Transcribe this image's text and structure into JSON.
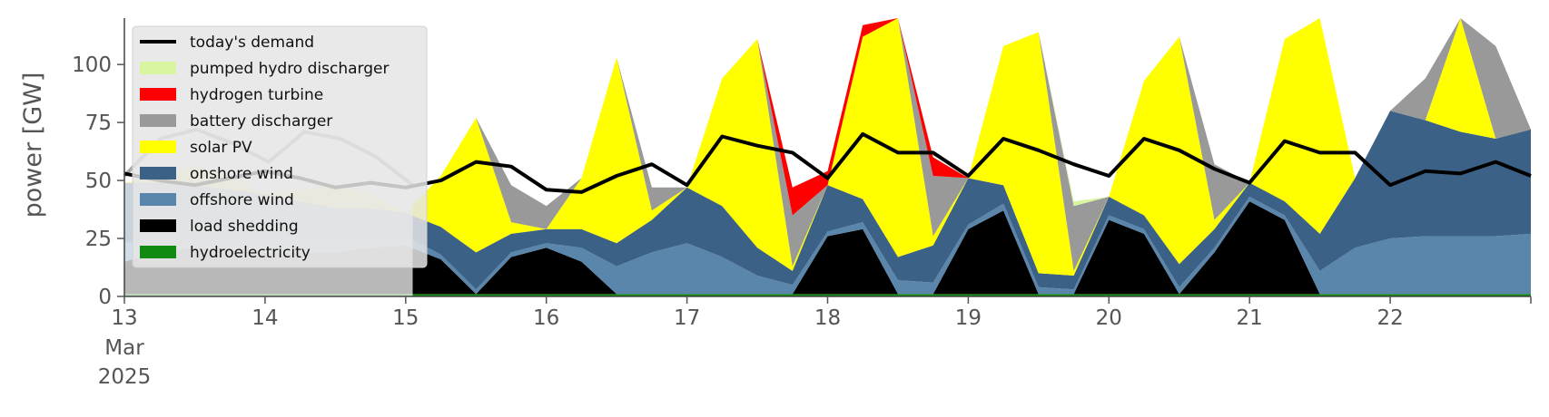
{
  "chart_data": {
    "type": "area",
    "ylabel": "power [GW]",
    "ylim": [
      0,
      120
    ],
    "yticks": [
      0,
      25,
      50,
      75,
      100
    ],
    "xlim": [
      13,
      23
    ],
    "xticks": [
      13,
      14,
      15,
      16,
      17,
      18,
      19,
      20,
      21,
      22
    ],
    "xtick_labels": [
      "13",
      "14",
      "15",
      "16",
      "17",
      "18",
      "19",
      "20",
      "21",
      "22"
    ],
    "x_origin_sublabels": [
      "Mar",
      "2025"
    ],
    "grid": false,
    "legend_position": "top-left",
    "x": [
      13.0,
      13.25,
      13.5,
      13.75,
      14.0,
      14.25,
      14.5,
      14.75,
      15.0,
      15.25,
      15.5,
      15.75,
      16.0,
      16.25,
      16.5,
      16.75,
      17.0,
      17.25,
      17.5,
      17.75,
      18.0,
      18.25,
      18.5,
      18.75,
      19.0,
      19.25,
      19.5,
      19.75,
      20.0,
      20.25,
      20.5,
      20.75,
      21.0,
      21.25,
      21.5,
      21.75,
      22.0,
      22.25,
      22.5,
      22.75,
      23.0
    ],
    "series": [
      {
        "name": "hydroelectricity",
        "color": "#118a11",
        "values": [
          1,
          1,
          1,
          1,
          1,
          1,
          1,
          1,
          1,
          1,
          1,
          1,
          1,
          1,
          1,
          1,
          1,
          1,
          1,
          1,
          1,
          1,
          1,
          1,
          1,
          1,
          1,
          1,
          1,
          1,
          1,
          1,
          1,
          1,
          1,
          1,
          1,
          1,
          1,
          1,
          1
        ]
      },
      {
        "name": "load shedding",
        "color": "#000000",
        "values": [
          14,
          18,
          20,
          19,
          18,
          18,
          18,
          20,
          21,
          15,
          0,
          16,
          20,
          14,
          0,
          0,
          0,
          0,
          0,
          0,
          25,
          28,
          0,
          0,
          28,
          36,
          0,
          0,
          32,
          26,
          0,
          18,
          40,
          32,
          0,
          0,
          0,
          0,
          0,
          0,
          0
        ]
      },
      {
        "name": "offshore wind",
        "color": "#5b86ac",
        "values": [
          8,
          6,
          5,
          6,
          7,
          6,
          5,
          5,
          4,
          2,
          2,
          2,
          2,
          6,
          12,
          18,
          22,
          16,
          8,
          4,
          2,
          3,
          6,
          5,
          2,
          3,
          3,
          2,
          2,
          2,
          3,
          2,
          2,
          2,
          10,
          20,
          24,
          25,
          25,
          25,
          26
        ]
      },
      {
        "name": "onshore wind",
        "color": "#3c6186",
        "values": [
          26,
          24,
          22,
          20,
          18,
          16,
          14,
          12,
          10,
          12,
          16,
          8,
          6,
          8,
          10,
          14,
          24,
          22,
          12,
          6,
          20,
          10,
          10,
          16,
          20,
          8,
          6,
          6,
          8,
          6,
          10,
          8,
          6,
          6,
          16,
          30,
          55,
          50,
          45,
          42,
          45
        ]
      },
      {
        "name": "solar PV",
        "color": "#ffff00",
        "values": [
          0,
          4,
          8,
          6,
          0,
          5,
          10,
          6,
          0,
          22,
          58,
          5,
          0,
          22,
          80,
          4,
          0,
          55,
          90,
          2,
          0,
          70,
          110,
          4,
          0,
          60,
          104,
          2,
          0,
          58,
          98,
          4,
          0,
          70,
          110,
          0,
          0,
          0,
          50,
          0,
          0
        ]
      },
      {
        "name": "battery discharger",
        "color": "#999999",
        "values": [
          0,
          0,
          0,
          0,
          0,
          0,
          0,
          0,
          0,
          0,
          0,
          16,
          10,
          0,
          0,
          10,
          0,
          0,
          0,
          22,
          0,
          0,
          0,
          26,
          0,
          0,
          0,
          28,
          0,
          0,
          0,
          24,
          0,
          0,
          0,
          0,
          0,
          18,
          20,
          40,
          0
        ]
      },
      {
        "name": "hydrogen turbine",
        "color": "#ff0000",
        "values": [
          0,
          0,
          0,
          0,
          0,
          0,
          0,
          0,
          0,
          0,
          0,
          0,
          0,
          0,
          0,
          0,
          0,
          0,
          0,
          12,
          6,
          5,
          0,
          8,
          0,
          0,
          0,
          0,
          0,
          0,
          0,
          0,
          0,
          0,
          0,
          0,
          0,
          0,
          0,
          0,
          0
        ]
      },
      {
        "name": "pumped hydro discharger",
        "color": "#d9f5a0",
        "values": [
          0,
          0,
          0,
          0,
          0,
          0,
          0,
          0,
          0,
          0,
          0,
          0,
          0,
          0,
          0,
          0,
          0,
          0,
          0,
          0,
          0,
          0,
          0,
          0,
          0,
          0,
          0,
          2,
          0,
          0,
          0,
          0,
          0,
          0,
          0,
          0,
          0,
          0,
          0,
          0,
          0
        ]
      }
    ],
    "demand": {
      "name": "today's demand",
      "color": "#000000",
      "values": [
        53,
        50,
        48,
        51,
        54,
        51,
        47,
        49,
        47,
        50,
        58,
        56,
        46,
        45,
        52,
        57,
        48,
        69,
        65,
        62,
        51,
        70,
        62,
        62,
        52,
        68,
        63,
        57,
        52,
        68,
        63,
        55,
        49,
        67,
        62,
        62,
        48,
        54,
        53,
        58,
        52
      ]
    },
    "curtailment_overlay": {
      "color": "#ffffff",
      "opacity": 0.72,
      "x_range": [
        13,
        15.05
      ],
      "values": [
        52,
        68,
        72,
        66,
        58,
        71,
        68,
        60,
        48
      ]
    },
    "legend_order": [
      "today's demand",
      "pumped hydro discharger",
      "hydrogen turbine",
      "battery discharger",
      "solar PV",
      "onshore wind",
      "offshore wind",
      "load shedding",
      "hydroelectricity"
    ]
  }
}
